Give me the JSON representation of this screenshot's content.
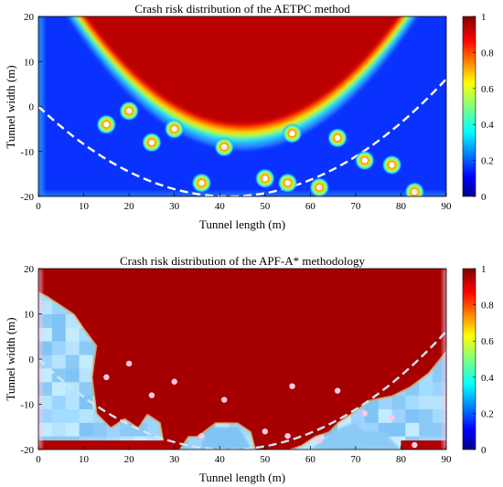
{
  "chart_data": [
    {
      "type": "heatmap",
      "title": "Crash risk distribution of the AETPC method",
      "xlabel": "Tunnel length (m)",
      "ylabel": "Tunnel width (m)",
      "xlim": [
        0,
        90
      ],
      "ylim": [
        -20,
        20
      ],
      "xticks": [
        "0",
        "10",
        "20",
        "30",
        "40",
        "50",
        "60",
        "70",
        "80",
        "90"
      ],
      "yticks": [
        "20",
        "10",
        "0",
        "-10",
        "-20"
      ],
      "colorbar": {
        "range": [
          0,
          1
        ],
        "ticks": [
          "1",
          "0.8",
          "0.6",
          "0.4",
          "0.2",
          "0"
        ]
      },
      "high_risk_boundary": {
        "vertex": [
          45,
          -4
        ],
        "curvature": 0.02,
        "edge_y": 20
      },
      "planned_path": {
        "style": "dashed",
        "color": "#ffffff",
        "vertex": [
          42,
          -20
        ],
        "through": [
          0,
          0
        ]
      },
      "obstacles": [
        [
          15,
          -4
        ],
        [
          20,
          -1
        ],
        [
          25,
          -8
        ],
        [
          30,
          -5
        ],
        [
          36,
          -17
        ],
        [
          41,
          -9
        ],
        [
          50,
          -16
        ],
        [
          55,
          -17
        ],
        [
          56,
          -6
        ],
        [
          62,
          -18
        ],
        [
          66,
          -7
        ],
        [
          72,
          -12
        ],
        [
          78,
          -13
        ],
        [
          83,
          -19
        ]
      ]
    },
    {
      "type": "heatmap",
      "title": "Crash risk distribution of the APF-A* methodology",
      "xlabel": "Tunnel length (m)",
      "ylabel": "Tunnel width (m)",
      "xlim": [
        0,
        90
      ],
      "ylim": [
        -20,
        20
      ],
      "xticks": [
        "0",
        "10",
        "20",
        "30",
        "40",
        "50",
        "60",
        "70",
        "80",
        "90"
      ],
      "yticks": [
        "20",
        "10",
        "0",
        "-10",
        "-20"
      ],
      "colorbar": {
        "range": [
          0,
          1
        ],
        "ticks": [
          "1",
          "0.8",
          "0.6",
          "0.4",
          "0.2",
          "0"
        ]
      },
      "planned_path": {
        "style": "dashed",
        "color": "#cce8f4",
        "vertex": [
          42,
          -20
        ],
        "through": [
          0,
          0
        ]
      },
      "obstacles": [
        [
          15,
          -4
        ],
        [
          20,
          -1
        ],
        [
          25,
          -8
        ],
        [
          30,
          -5
        ],
        [
          36,
          -17
        ],
        [
          41,
          -9
        ],
        [
          50,
          -16
        ],
        [
          55,
          -17
        ],
        [
          56,
          -6
        ],
        [
          62,
          -18
        ],
        [
          66,
          -7
        ],
        [
          72,
          -12
        ],
        [
          78,
          -13
        ],
        [
          83,
          -19
        ]
      ]
    }
  ]
}
